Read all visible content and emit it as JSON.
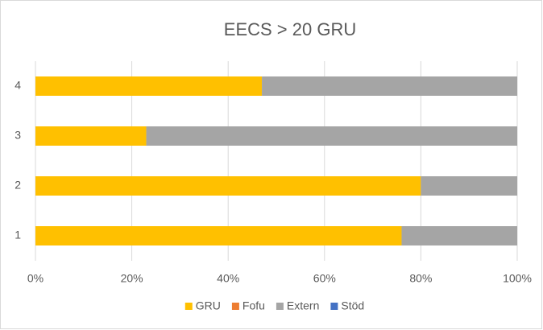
{
  "chart_data": {
    "type": "stacked-bar-horizontal",
    "title": "EECS > 20 GRU",
    "categories": [
      "1",
      "2",
      "3",
      "4"
    ],
    "series": [
      {
        "name": "GRU",
        "color": "#ffc000",
        "values": [
          76,
          80,
          23,
          47
        ]
      },
      {
        "name": "Fofu",
        "color": "#ed7d31",
        "values": [
          0,
          0,
          0,
          0
        ]
      },
      {
        "name": "Extern",
        "color": "#a5a5a5",
        "values": [
          24,
          20,
          77,
          53
        ]
      },
      {
        "name": "Stöd",
        "color": "#4472c4",
        "values": [
          0,
          0,
          0,
          0
        ]
      }
    ],
    "xlim": [
      0,
      100
    ],
    "xticks": [
      {
        "value": 0,
        "label": "0%"
      },
      {
        "value": 20,
        "label": "20%"
      },
      {
        "value": 40,
        "label": "40%"
      },
      {
        "value": 60,
        "label": "60%"
      },
      {
        "value": 80,
        "label": "80%"
      },
      {
        "value": 100,
        "label": "100%"
      }
    ],
    "grid": true,
    "legend": "bottom"
  }
}
